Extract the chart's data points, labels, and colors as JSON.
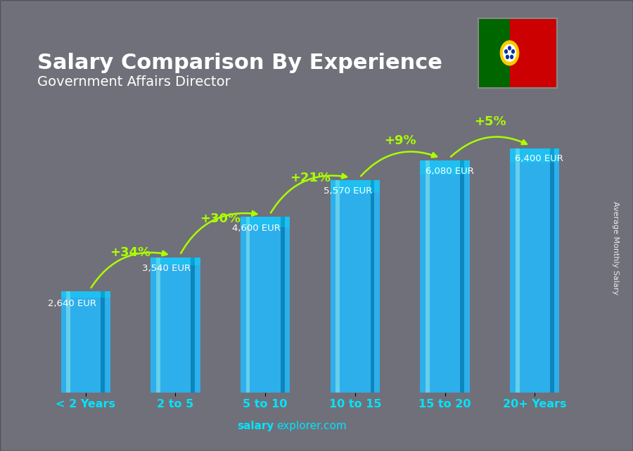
{
  "title": "Salary Comparison By Experience",
  "subtitle": "Government Affairs Director",
  "categories": [
    "< 2 Years",
    "2 to 5",
    "5 to 10",
    "10 to 15",
    "15 to 20",
    "20+ Years"
  ],
  "values": [
    2640,
    3540,
    4600,
    5570,
    6080,
    6400
  ],
  "value_labels": [
    "2,640 EUR",
    "3,540 EUR",
    "4,600 EUR",
    "5,570 EUR",
    "6,080 EUR",
    "6,400 EUR"
  ],
  "pct_labels": [
    "+34%",
    "+30%",
    "+21%",
    "+9%",
    "+5%"
  ],
  "bar_color_main": "#29b6f6",
  "bar_color_light": "#80deea",
  "bar_color_dark": "#0077aa",
  "bg_color": "#111122",
  "title_color": "#ffffff",
  "subtitle_color": "#ffffff",
  "pct_color": "#aaff00",
  "label_color": "#ffffff",
  "watermark": "salaryexplorer.com",
  "side_label": "Average Monthly Salary",
  "ylim": [
    0,
    7800
  ],
  "bar_width": 0.55,
  "arrow_color": "#aaff00",
  "flag_green": "#006600",
  "flag_red": "#cc0000",
  "flag_yellow": "#ffcc00"
}
